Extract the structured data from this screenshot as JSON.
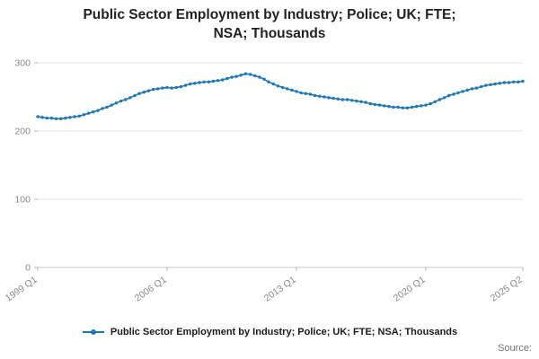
{
  "header": {
    "title_line1": "Public Sector Employment by Industry; Police; UK; FTE;",
    "title_line2": "NSA; Thousands"
  },
  "chart_data": {
    "type": "line",
    "title": "Public Sector Employment by Industry; Police; UK; FTE; NSA; Thousands",
    "xlabel": "",
    "ylabel": "",
    "ylim": [
      0,
      300
    ],
    "yticks": [
      0,
      100,
      200,
      300
    ],
    "grid": true,
    "legend_position": "bottom",
    "x_range": {
      "start": "1999 Q1",
      "end": "2025 Q2",
      "freq": "quarterly"
    },
    "x_ticks": [
      {
        "label": "1999 Q1",
        "index": 0
      },
      {
        "label": "2006 Q1",
        "index": 28
      },
      {
        "label": "2013 Q1",
        "index": 56
      },
      {
        "label": "2020 Q1",
        "index": 84
      },
      {
        "label": "2025 Q2",
        "index": 105
      }
    ],
    "series": [
      {
        "name": "Public Sector Employment by Industry; Police; UK; FTE; NSA; Thousands",
        "color": "#1f77b4",
        "values": [
          221,
          220,
          219,
          219,
          218,
          218,
          219,
          220,
          221,
          222,
          224,
          226,
          228,
          230,
          233,
          235,
          238,
          241,
          244,
          246,
          249,
          252,
          255,
          257,
          259,
          261,
          262,
          263,
          264,
          263,
          264,
          265,
          267,
          269,
          270,
          271,
          272,
          272,
          273,
          274,
          275,
          277,
          279,
          280,
          282,
          284,
          283,
          281,
          279,
          276,
          272,
          269,
          266,
          264,
          262,
          260,
          258,
          256,
          255,
          254,
          252,
          251,
          250,
          249,
          248,
          247,
          246,
          246,
          245,
          244,
          243,
          242,
          240,
          239,
          238,
          237,
          236,
          235,
          235,
          234,
          234,
          235,
          236,
          237,
          238,
          240,
          243,
          246,
          249,
          252,
          254,
          256,
          258,
          260,
          262,
          263,
          265,
          267,
          268,
          269,
          270,
          271,
          271,
          272,
          272,
          273
        ]
      }
    ]
  },
  "footer": {
    "source_label": "Source:"
  },
  "colors": {
    "line": "#1f77b4",
    "gridline": "#e4e4e4",
    "axis_text": "#8a8a8a"
  }
}
